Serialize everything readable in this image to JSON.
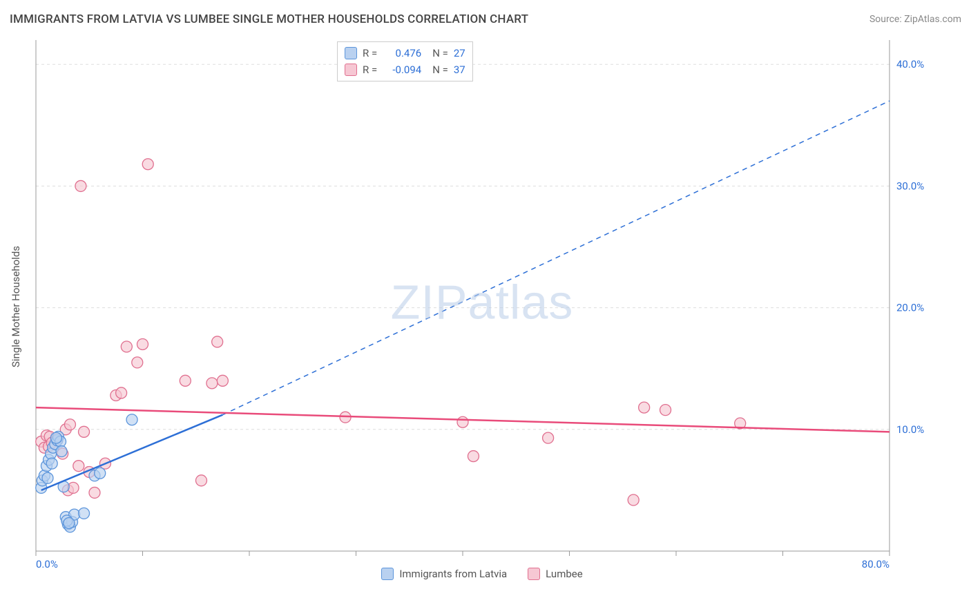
{
  "title": "IMMIGRANTS FROM LATVIA VS LUMBEE SINGLE MOTHER HOUSEHOLDS CORRELATION CHART",
  "source": "Source: ZipAtlas.com",
  "watermark": "ZIPatlas",
  "y_axis_label": "Single Mother Households",
  "series_a": {
    "name": "Immigrants from Latvia",
    "color_fill": "#b9d1f0",
    "color_stroke": "#5c95db",
    "R": "0.476",
    "N": "27",
    "trend_solid": {
      "x1": 0.5,
      "y1": 5.0,
      "x2": 17.5,
      "y2": 11.2
    },
    "trend_dashed": {
      "x1": 17.5,
      "y1": 11.2,
      "x2": 80.0,
      "y2": 37.0
    },
    "trend_color": "#2d6fd6",
    "trend_width": 2.5,
    "points": [
      {
        "x": 0.5,
        "y": 5.2
      },
      {
        "x": 0.6,
        "y": 5.8
      },
      {
        "x": 0.8,
        "y": 6.2
      },
      {
        "x": 1.0,
        "y": 7.0
      },
      {
        "x": 1.1,
        "y": 6.0
      },
      {
        "x": 1.2,
        "y": 7.5
      },
      {
        "x": 1.4,
        "y": 8.0
      },
      {
        "x": 1.5,
        "y": 7.2
      },
      {
        "x": 1.6,
        "y": 8.5
      },
      {
        "x": 1.8,
        "y": 8.8
      },
      {
        "x": 2.0,
        "y": 9.1
      },
      {
        "x": 2.1,
        "y": 9.4
      },
      {
        "x": 2.3,
        "y": 9.0
      },
      {
        "x": 2.4,
        "y": 8.2
      },
      {
        "x": 2.6,
        "y": 5.3
      },
      {
        "x": 2.8,
        "y": 2.8
      },
      {
        "x": 3.0,
        "y": 2.2
      },
      {
        "x": 3.2,
        "y": 2.0
      },
      {
        "x": 3.4,
        "y": 2.4
      },
      {
        "x": 3.6,
        "y": 3.0
      },
      {
        "x": 4.5,
        "y": 3.1
      },
      {
        "x": 5.5,
        "y": 6.2
      },
      {
        "x": 6.0,
        "y": 6.4
      },
      {
        "x": 9.0,
        "y": 10.8
      },
      {
        "x": 2.9,
        "y": 2.5
      },
      {
        "x": 3.1,
        "y": 2.3
      },
      {
        "x": 1.9,
        "y": 9.3
      }
    ]
  },
  "series_b": {
    "name": "Lumbee",
    "color_fill": "#f6c7d3",
    "color_stroke": "#e06f8f",
    "R": "-0.094",
    "N": "37",
    "trend": {
      "x1": 0.0,
      "y1": 11.8,
      "x2": 80.0,
      "y2": 9.8
    },
    "trend_color": "#e94b7a",
    "trend_width": 2.5,
    "points": [
      {
        "x": 0.5,
        "y": 9.0
      },
      {
        "x": 0.8,
        "y": 8.5
      },
      {
        "x": 1.0,
        "y": 9.5
      },
      {
        "x": 1.2,
        "y": 8.6
      },
      {
        "x": 1.3,
        "y": 9.4
      },
      {
        "x": 1.5,
        "y": 8.9
      },
      {
        "x": 2.0,
        "y": 9.2
      },
      {
        "x": 2.5,
        "y": 8.0
      },
      {
        "x": 3.0,
        "y": 5.0
      },
      {
        "x": 3.5,
        "y": 5.2
      },
      {
        "x": 4.0,
        "y": 7.0
      },
      {
        "x": 4.5,
        "y": 9.8
      },
      {
        "x": 5.0,
        "y": 6.5
      },
      {
        "x": 5.5,
        "y": 4.8
      },
      {
        "x": 6.5,
        "y": 7.2
      },
      {
        "x": 7.5,
        "y": 12.8
      },
      {
        "x": 8.5,
        "y": 16.8
      },
      {
        "x": 9.5,
        "y": 15.5
      },
      {
        "x": 8.0,
        "y": 13.0
      },
      {
        "x": 10.0,
        "y": 17.0
      },
      {
        "x": 14.0,
        "y": 14.0
      },
      {
        "x": 15.5,
        "y": 5.8
      },
      {
        "x": 16.5,
        "y": 13.8
      },
      {
        "x": 17.0,
        "y": 17.2
      },
      {
        "x": 17.5,
        "y": 14.0
      },
      {
        "x": 4.2,
        "y": 30.0
      },
      {
        "x": 10.5,
        "y": 31.8
      },
      {
        "x": 29.0,
        "y": 11.0
      },
      {
        "x": 40.0,
        "y": 10.6
      },
      {
        "x": 41.0,
        "y": 7.8
      },
      {
        "x": 48.0,
        "y": 9.3
      },
      {
        "x": 57.0,
        "y": 11.8
      },
      {
        "x": 59.0,
        "y": 11.6
      },
      {
        "x": 56.0,
        "y": 4.2
      },
      {
        "x": 66.0,
        "y": 10.5
      },
      {
        "x": 2.8,
        "y": 10.0
      },
      {
        "x": 3.2,
        "y": 10.4
      }
    ]
  },
  "axes": {
    "xlim": [
      0,
      80
    ],
    "ylim": [
      0,
      42
    ],
    "x_ticks": [
      0,
      10,
      20,
      30,
      40,
      50,
      60,
      70,
      80
    ],
    "x_tick_labels": {
      "0": "0.0%",
      "80": "80.0%"
    },
    "y_ticks": [
      10,
      20,
      30,
      40
    ],
    "y_tick_labels": {
      "10": "10.0%",
      "20": "20.0%",
      "30": "30.0%",
      "40": "40.0%"
    },
    "grid_color": "#dddddd",
    "axis_color": "#999999",
    "tick_label_color": "#2d6fd6",
    "tick_label_fontsize": 15
  },
  "background_color": "#ffffff",
  "marker_radius": 8,
  "marker_opacity": 0.65
}
